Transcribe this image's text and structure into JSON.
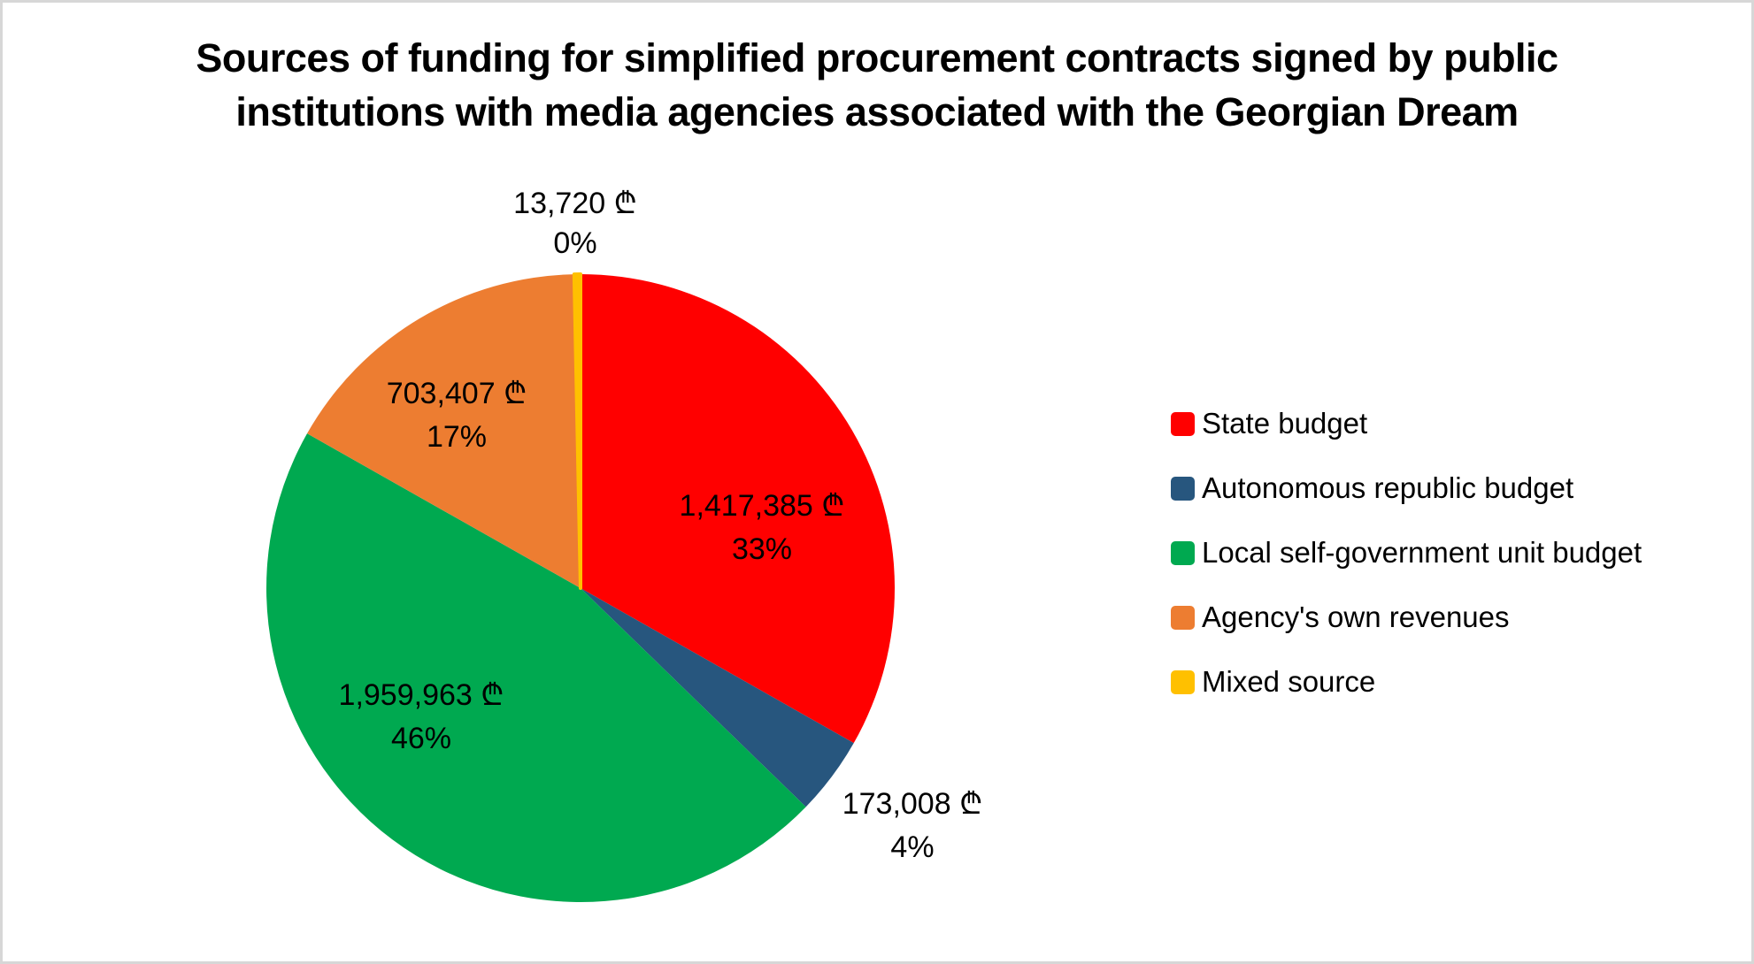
{
  "frame": {
    "background": "#FFFFFF",
    "border_color": "#D7D7D7"
  },
  "title": {
    "text": "Sources of funding for simplified procurement contracts signed by public institutions with media agencies associated with the Georgian Dream",
    "line1": "Sources of funding for simplified procurement contracts signed by public",
    "line2": "institutions with media agencies associated with the Georgian Dream"
  },
  "chart_data": {
    "type": "pie",
    "title": "Sources of funding for simplified procurement contracts signed by public institutions with media agencies associated with the Georgian Dream",
    "currency_symbol": "₾",
    "start_angle": "top",
    "direction": "clockwise",
    "legend_position": "right",
    "grid": false,
    "slices": [
      {
        "label": "State budget",
        "value": 1417385,
        "value_label": "1,417,385 ₾",
        "pct_label": "33%",
        "color": "#FF0000"
      },
      {
        "label": "Autonomous republic budget",
        "value": 173008,
        "value_label": "173,008 ₾",
        "pct_label": "4%",
        "color": "#27567E"
      },
      {
        "label": "Local self-government unit budget",
        "value": 1959963,
        "value_label": "1,959,963 ₾",
        "pct_label": "46%",
        "color": "#00A950"
      },
      {
        "label": "Agency's own revenues",
        "value": 703407,
        "value_label": "703,407 ₾",
        "pct_label": "17%",
        "color": "#ED7D31"
      },
      {
        "label": "Mixed source",
        "value": 13720,
        "value_label": "13,720 ₾",
        "pct_label": "0%",
        "color": "#FFC000"
      }
    ]
  }
}
